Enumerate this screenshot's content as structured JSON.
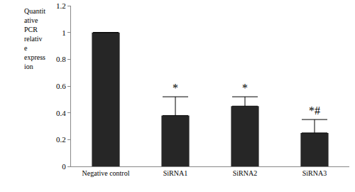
{
  "chart_data": {
    "type": "bar",
    "ylabel": "Quantitative PCR relative expression",
    "categories": [
      "Negative control",
      "SiRNA1",
      "SiRNA2",
      "SiRNA3"
    ],
    "values": [
      1.0,
      0.38,
      0.45,
      0.25
    ],
    "errors": [
      null,
      0.14,
      0.07,
      0.1
    ],
    "color": "#262626",
    "ylim": [
      0,
      1.2
    ],
    "yticks": [
      0,
      0.2,
      0.4,
      0.6,
      0.8,
      1,
      1.2
    ],
    "grid": false,
    "annotations": [
      {
        "category": "SiRNA1",
        "text": "*"
      },
      {
        "category": "SiRNA2",
        "text": "*"
      },
      {
        "category": "SiRNA3",
        "text": "*#"
      }
    ]
  }
}
